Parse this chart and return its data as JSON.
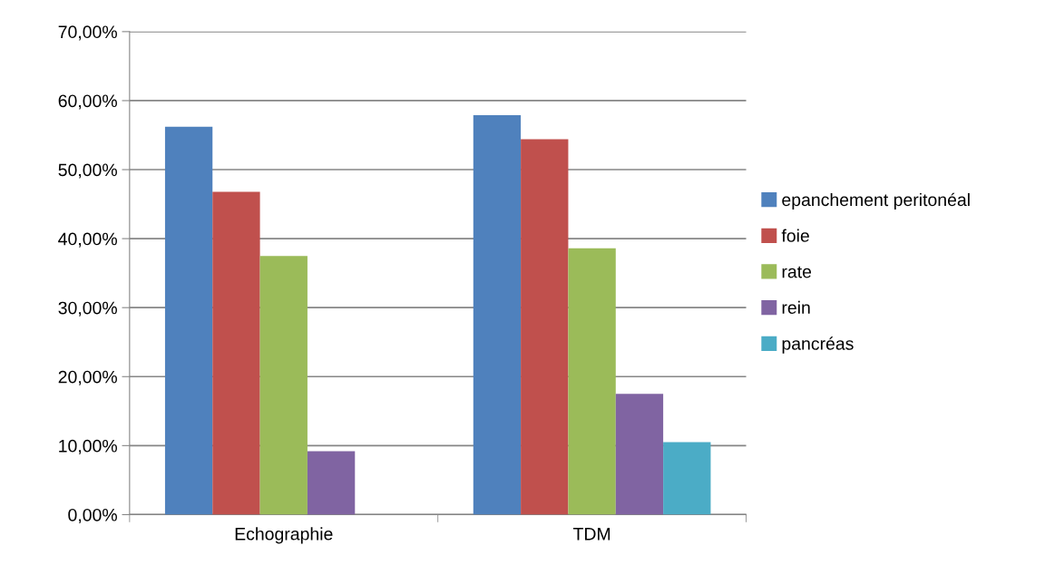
{
  "chart_data": {
    "type": "bar",
    "categories": [
      "Echographie",
      "TDM"
    ],
    "series": [
      {
        "name": "epanchement peritonéal",
        "color": "#4f81bd",
        "values": [
          56.2,
          57.9
        ]
      },
      {
        "name": "foie",
        "color": "#c0504d",
        "values": [
          46.8,
          54.4
        ]
      },
      {
        "name": "rate",
        "color": "#9bbb59",
        "values": [
          37.5,
          38.6
        ]
      },
      {
        "name": "rein",
        "color": "#8064a2",
        "values": [
          9.2,
          17.5
        ]
      },
      {
        "name": "pancréas",
        "color": "#4bacc6",
        "values": [
          null,
          10.5
        ]
      }
    ],
    "ylim": [
      0,
      70
    ],
    "yticks": [
      {
        "value": 0,
        "label": "0,00%"
      },
      {
        "value": 10,
        "label": "10,00%"
      },
      {
        "value": 20,
        "label": "20,00%"
      },
      {
        "value": 30,
        "label": "30,00%"
      },
      {
        "value": 40,
        "label": "40,00%"
      },
      {
        "value": 50,
        "label": "50,00%"
      },
      {
        "value": 60,
        "label": "60,00%"
      },
      {
        "value": 70,
        "label": "70,00%"
      }
    ],
    "grid": "y",
    "legend": "right"
  }
}
